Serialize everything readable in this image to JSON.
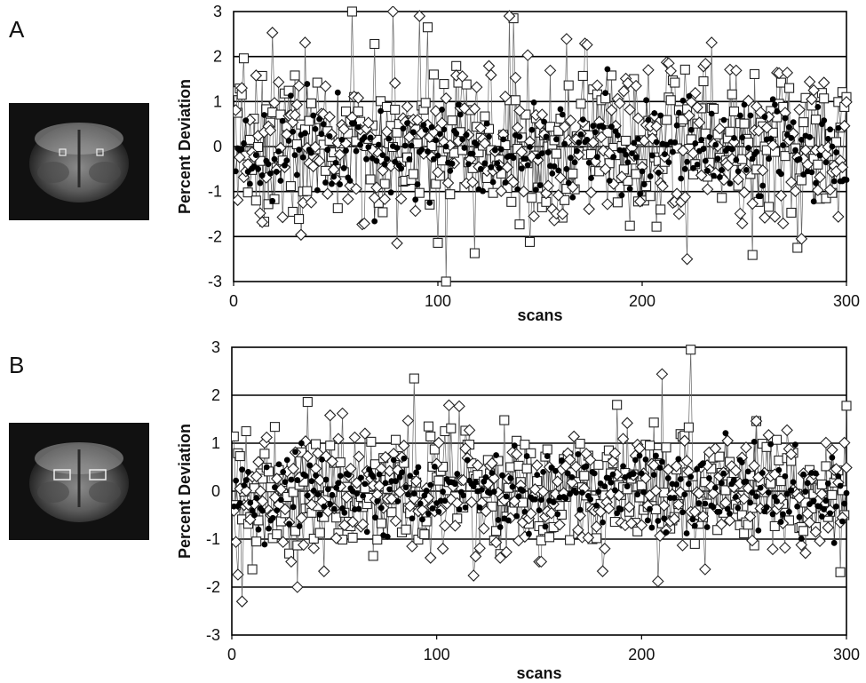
{
  "panels": [
    {
      "letter": "A",
      "roi_shape": "small-squares",
      "chart": {
        "type": "line",
        "xlabel": "scans",
        "ylabel": "Percent Deviation",
        "xlim": [
          0,
          300
        ],
        "ylim": [
          -3,
          3
        ],
        "x_ticks": [
          "0",
          "100",
          "200",
          "300"
        ],
        "y_ticks": [
          "3",
          "2",
          "1",
          "0",
          "-1",
          "-2",
          "-3"
        ],
        "grid_y": true,
        "series_styles": [
          {
            "marker": "open-square",
            "color": "#222222"
          },
          {
            "marker": "open-diamond",
            "color": "#222222"
          },
          {
            "marker": "filled-circle",
            "color": "#000000"
          }
        ]
      }
    },
    {
      "letter": "B",
      "roi_shape": "large-rectangles",
      "chart": {
        "type": "line",
        "xlabel": "scans",
        "ylabel": "Percent Deviation",
        "xlim": [
          0,
          300
        ],
        "ylim": [
          -3,
          3
        ],
        "x_ticks": [
          "0",
          "100",
          "200",
          "300"
        ],
        "y_ticks": [
          "3",
          "2",
          "1",
          "0",
          "-1",
          "-2",
          "-3"
        ],
        "grid_y": true,
        "series_styles": [
          {
            "marker": "open-square",
            "color": "#222222"
          },
          {
            "marker": "open-diamond",
            "color": "#222222"
          },
          {
            "marker": "filled-circle",
            "color": "#000000"
          }
        ]
      }
    }
  ],
  "chart_data": [
    {
      "type": "line",
      "xlabel": "scans",
      "ylabel": "Percent Deviation",
      "xlim": [
        0,
        300
      ],
      "ylim": [
        -3,
        3
      ],
      "grid": true,
      "x_ticks": [
        0,
        100,
        200,
        300
      ],
      "y_ticks": [
        -3,
        -2,
        -1,
        0,
        1,
        2,
        3
      ],
      "series_count": 3,
      "seed": 7,
      "amplitude": {
        "open_square": 1.0,
        "open_diamond": 1.15,
        "filled_circle": 0.65
      },
      "note_on_values": "",
      "highlights": [
        {
          "x": 58,
          "y": 3.0
        },
        {
          "x": 78,
          "y": 3.0
        },
        {
          "x": 137,
          "y": 2.85
        },
        {
          "x": 222,
          "y": -2.5
        },
        {
          "x": 104,
          "y": -3.0
        }
      ]
    },
    {
      "type": "line",
      "xlabel": "scans",
      "ylabel": "Percent Deviation",
      "xlim": [
        0,
        300
      ],
      "ylim": [
        -3,
        3
      ],
      "grid": true,
      "x_ticks": [
        0,
        100,
        200,
        300
      ],
      "y_ticks": [
        -3,
        -2,
        -1,
        0,
        1,
        2,
        3
      ],
      "series_count": 3,
      "seed": 19,
      "amplitude": {
        "open_square": 0.8,
        "open_diamond": 0.9,
        "filled_circle": 0.5
      },
      "note_on_values": "",
      "highlights": [
        {
          "x": 224,
          "y": 2.95
        },
        {
          "x": 5,
          "y": -2.3
        },
        {
          "x": 89,
          "y": 2.35
        },
        {
          "x": 32,
          "y": -2.0
        }
      ]
    }
  ]
}
